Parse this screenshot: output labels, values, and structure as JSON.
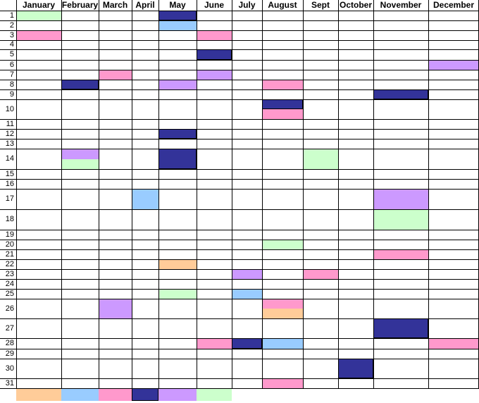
{
  "months": [
    "January",
    "February",
    "March",
    "April",
    "May",
    "June",
    "July",
    "August",
    "Sept",
    "October",
    "November",
    "December"
  ],
  "days": [
    1,
    2,
    3,
    4,
    5,
    6,
    7,
    8,
    9,
    10,
    11,
    12,
    13,
    14,
    15,
    16,
    17,
    18,
    19,
    20,
    21,
    22,
    23,
    24,
    25,
    26,
    27,
    28,
    29,
    30,
    31
  ],
  "palette": {
    "navy": "#333399",
    "lightblue": "#99ccff",
    "pink": "#ff99cc",
    "lavender": "#cc99ff",
    "mint": "#ccffcc",
    "peach": "#ffcc99"
  },
  "fills": [
    {
      "month": "January",
      "day": 1,
      "color": "mint"
    },
    {
      "month": "January",
      "day": 3,
      "color": "pink"
    },
    {
      "month": "February",
      "day": 8,
      "color": "navy"
    },
    {
      "month": "February",
      "day": 14,
      "part": "top",
      "color": "lavender"
    },
    {
      "month": "February",
      "day": 14,
      "part": "bottom",
      "color": "mint"
    },
    {
      "month": "March",
      "day": 7,
      "color": "pink"
    },
    {
      "month": "March",
      "day": 26,
      "color": "lavender"
    },
    {
      "month": "April",
      "day": 17,
      "color": "lightblue"
    },
    {
      "month": "May",
      "day": 1,
      "color": "navy"
    },
    {
      "month": "May",
      "day": 2,
      "color": "lightblue"
    },
    {
      "month": "May",
      "day": 8,
      "color": "lavender"
    },
    {
      "month": "May",
      "day": 12,
      "color": "navy"
    },
    {
      "month": "May",
      "day": 14,
      "color": "navy"
    },
    {
      "month": "May",
      "day": 22,
      "color": "peach"
    },
    {
      "month": "May",
      "day": 25,
      "color": "mint"
    },
    {
      "month": "June",
      "day": 3,
      "color": "pink"
    },
    {
      "month": "June",
      "day": 5,
      "color": "navy"
    },
    {
      "month": "June",
      "day": 7,
      "color": "lavender"
    },
    {
      "month": "June",
      "day": 28,
      "color": "pink"
    },
    {
      "month": "July",
      "day": 23,
      "color": "lavender"
    },
    {
      "month": "July",
      "day": 25,
      "color": "lightblue"
    },
    {
      "month": "July",
      "day": 28,
      "color": "navy"
    },
    {
      "month": "August",
      "day": 8,
      "color": "pink"
    },
    {
      "month": "August",
      "day": 10,
      "part": "top",
      "color": "navy"
    },
    {
      "month": "August",
      "day": 10,
      "part": "bottom",
      "color": "pink"
    },
    {
      "month": "August",
      "day": 20,
      "color": "mint"
    },
    {
      "month": "August",
      "day": 26,
      "part": "top",
      "color": "pink"
    },
    {
      "month": "August",
      "day": 26,
      "part": "bottom",
      "color": "peach"
    },
    {
      "month": "August",
      "day": 28,
      "color": "lightblue"
    },
    {
      "month": "August",
      "day": 31,
      "color": "pink"
    },
    {
      "month": "Sept",
      "day": 14,
      "color": "mint"
    },
    {
      "month": "Sept",
      "day": 23,
      "color": "pink"
    },
    {
      "month": "October",
      "day": 30,
      "color": "navy"
    },
    {
      "month": "November",
      "day": 9,
      "color": "navy"
    },
    {
      "month": "November",
      "day": 17,
      "color": "lavender"
    },
    {
      "month": "November",
      "day": 18,
      "color": "mint"
    },
    {
      "month": "November",
      "day": 21,
      "color": "pink"
    },
    {
      "month": "November",
      "day": 27,
      "color": "navy"
    },
    {
      "month": "December",
      "day": 6,
      "color": "lavender"
    },
    {
      "month": "December",
      "day": 28,
      "color": "pink"
    }
  ],
  "legend": [
    {
      "month": "January",
      "color": "peach"
    },
    {
      "month": "February",
      "color": "lightblue"
    },
    {
      "month": "March",
      "color": "pink"
    },
    {
      "month": "April",
      "color": "navy"
    },
    {
      "month": "May",
      "color": "lavender"
    },
    {
      "month": "June",
      "color": "mint"
    }
  ]
}
